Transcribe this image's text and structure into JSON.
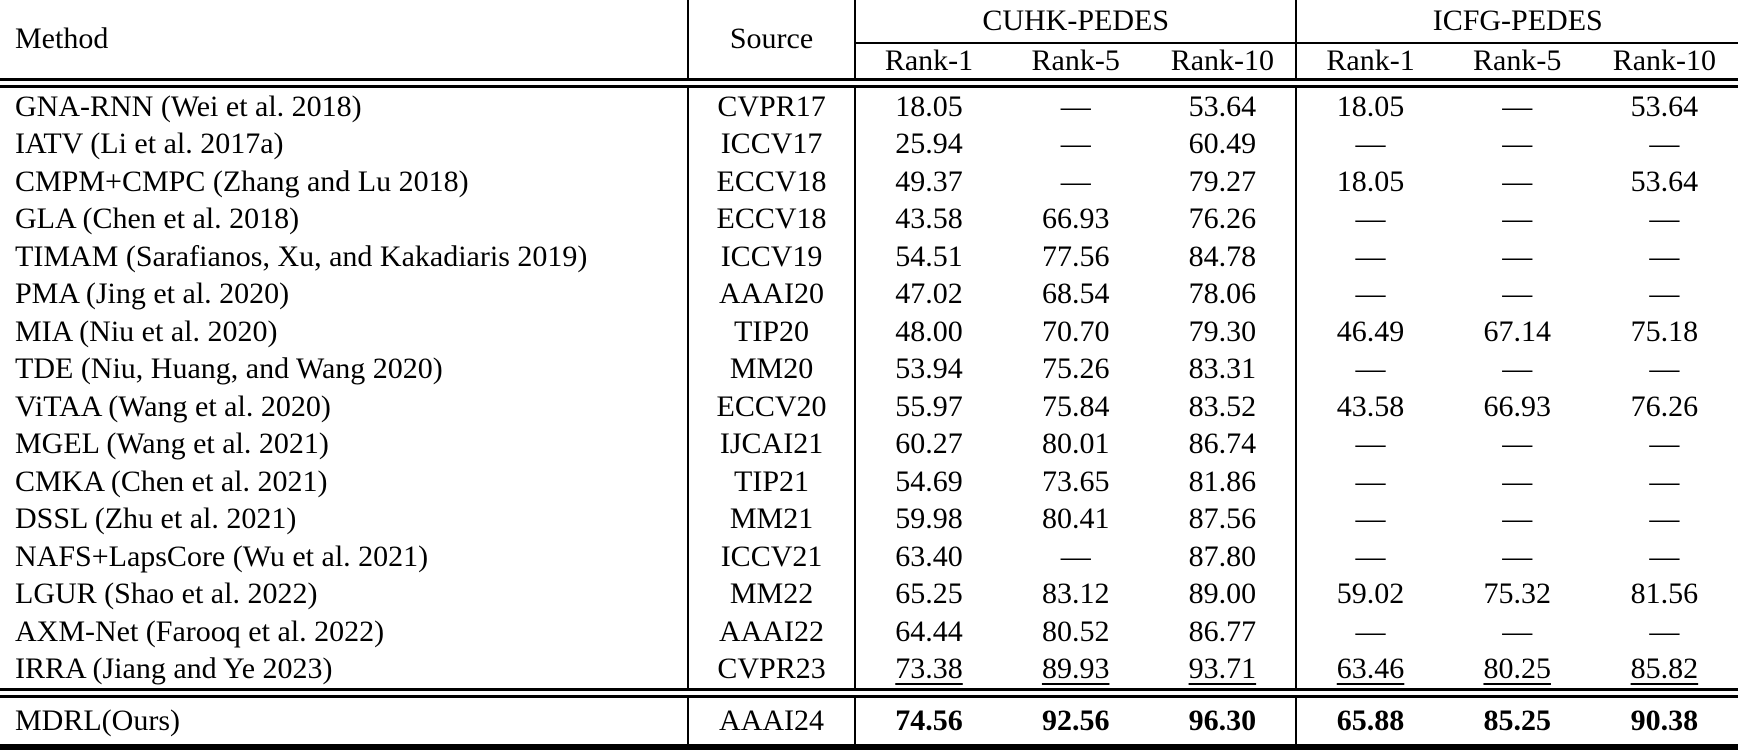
{
  "table": {
    "header": {
      "method": "Method",
      "source": "Source",
      "groups": [
        {
          "label": "CUHK-PEDES",
          "cols": [
            "Rank-1",
            "Rank-5",
            "Rank-10"
          ]
        },
        {
          "label": "ICFG-PEDES",
          "cols": [
            "Rank-1",
            "Rank-5",
            "Rank-10"
          ]
        }
      ]
    },
    "rows": [
      {
        "method": "GNA-RNN (Wei et al. 2018)",
        "source": "CVPR17",
        "values": [
          "18.05",
          "—",
          "53.64",
          "18.05",
          "—",
          "53.64"
        ],
        "style": "normal"
      },
      {
        "method": "IATV (Li et al. 2017a)",
        "source": "ICCV17",
        "values": [
          "25.94",
          "—",
          "60.49",
          "—",
          "—",
          "—"
        ],
        "style": "normal"
      },
      {
        "method": "CMPM+CMPC (Zhang and Lu 2018)",
        "source": "ECCV18",
        "values": [
          "49.37",
          "—",
          "79.27",
          "18.05",
          "—",
          "53.64"
        ],
        "style": "normal"
      },
      {
        "method": "GLA (Chen et al. 2018)",
        "source": "ECCV18",
        "values": [
          "43.58",
          "66.93",
          "76.26",
          "—",
          "—",
          "—"
        ],
        "style": "normal"
      },
      {
        "method": "TIMAM (Sarafianos, Xu, and Kakadiaris 2019)",
        "source": "ICCV19",
        "values": [
          "54.51",
          "77.56",
          "84.78",
          "—",
          "—",
          "—"
        ],
        "style": "normal"
      },
      {
        "method": "PMA (Jing et al. 2020)",
        "source": "AAAI20",
        "values": [
          "47.02",
          "68.54",
          "78.06",
          "—",
          "—",
          "—"
        ],
        "style": "normal"
      },
      {
        "method": "MIA (Niu et al. 2020)",
        "source": "TIP20",
        "values": [
          "48.00",
          "70.70",
          "79.30",
          "46.49",
          "67.14",
          "75.18"
        ],
        "style": "normal"
      },
      {
        "method": "TDE (Niu, Huang, and Wang 2020)",
        "source": "MM20",
        "values": [
          "53.94",
          "75.26",
          "83.31",
          "—",
          "—",
          "—"
        ],
        "style": "normal"
      },
      {
        "method": "ViTAA (Wang et al. 2020)",
        "source": "ECCV20",
        "values": [
          "55.97",
          "75.84",
          "83.52",
          "43.58",
          "66.93",
          "76.26"
        ],
        "style": "normal"
      },
      {
        "method": "MGEL (Wang et al. 2021)",
        "source": "IJCAI21",
        "values": [
          "60.27",
          "80.01",
          "86.74",
          "—",
          "—",
          "—"
        ],
        "style": "normal"
      },
      {
        "method": "CMKA (Chen et al. 2021)",
        "source": "TIP21",
        "values": [
          "54.69",
          "73.65",
          "81.86",
          "—",
          "—",
          "—"
        ],
        "style": "normal"
      },
      {
        "method": "DSSL (Zhu et al. 2021)",
        "source": "MM21",
        "values": [
          "59.98",
          "80.41",
          "87.56",
          "—",
          "—",
          "—"
        ],
        "style": "normal"
      },
      {
        "method": "NAFS+LapsCore (Wu et al. 2021)",
        "source": "ICCV21",
        "values": [
          "63.40",
          "—",
          "87.80",
          "—",
          "—",
          "—"
        ],
        "style": "normal"
      },
      {
        "method": "LGUR (Shao et al. 2022)",
        "source": "MM22",
        "values": [
          "65.25",
          "83.12",
          "89.00",
          "59.02",
          "75.32",
          "81.56"
        ],
        "style": "normal"
      },
      {
        "method": "AXM-Net (Farooq et al. 2022)",
        "source": "AAAI22",
        "values": [
          "64.44",
          "80.52",
          "86.77",
          "—",
          "—",
          "—"
        ],
        "style": "normal"
      },
      {
        "method": "IRRA (Jiang and Ye 2023)",
        "source": "CVPR23",
        "values": [
          "73.38",
          "89.93",
          "93.71",
          "63.46",
          "80.25",
          "85.82"
        ],
        "style": "underline"
      },
      {
        "method": "MDRL(Ours)",
        "source": "AAAI24",
        "values": [
          "74.56",
          "92.56",
          "96.30",
          "65.88",
          "85.25",
          "90.38"
        ],
        "style": "bold-ours"
      }
    ]
  },
  "colors": {
    "text": "#000000",
    "background": "#ffffff",
    "rule": "#000000"
  }
}
